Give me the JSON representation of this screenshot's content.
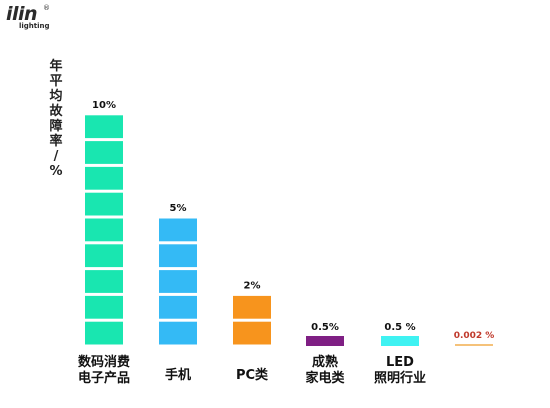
{
  "logo": {
    "main": "ilin",
    "sub": "lighting",
    "reg": "®"
  },
  "chart_data": {
    "type": "bar",
    "title": "",
    "xlabel": "",
    "ylabel": "年平均故障率/%",
    "categories": [
      [
        "数码消费",
        "电子产品"
      ],
      [
        "手机"
      ],
      [
        "PC类"
      ],
      [
        "成熟",
        "家电类"
      ],
      [
        "LED",
        "照明行业"
      ],
      [
        ""
      ]
    ],
    "values": [
      10,
      5,
      2,
      0.5,
      0.5,
      0.002
    ],
    "data_labels": [
      "10%",
      "5%",
      "2%",
      "0.5%",
      "0.5 %",
      "0.002 %"
    ],
    "colors": [
      "#19e6b0",
      "#34baf5",
      "#f7941d",
      "#7f1f84",
      "#3ff2f2",
      "#f5c27a"
    ],
    "data_label_colors": [
      "#111111",
      "#111111",
      "#111111",
      "#111111",
      "#111111",
      "#c0392b"
    ],
    "segments": [
      9,
      5,
      2,
      1,
      1,
      1
    ],
    "grid": false,
    "legend": "none"
  }
}
